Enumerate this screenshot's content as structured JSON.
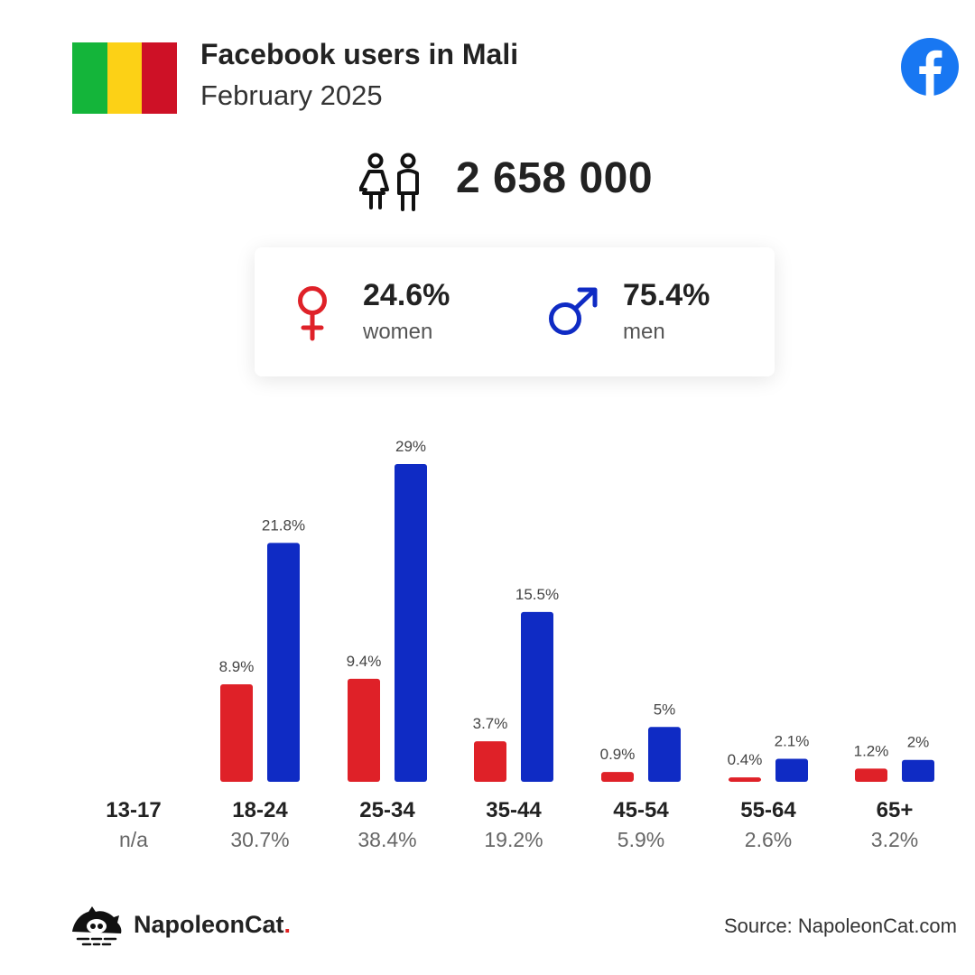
{
  "header": {
    "title": "Facebook users in Mali",
    "subtitle": "February 2025"
  },
  "flag_colors": [
    "#14b53a",
    "#fcd116",
    "#ce1126"
  ],
  "icons": {
    "platform": "facebook-logo-icon",
    "users": "people-icon",
    "female": "female-symbol-icon",
    "male": "male-symbol-icon",
    "brand": "napoleoncat-logo-icon"
  },
  "total_users": "2 658 000",
  "gender": {
    "women_pct": "24.6%",
    "women_label": "women",
    "men_pct": "75.4%",
    "men_label": "men"
  },
  "colors": {
    "women": "#df2128",
    "men": "#0f2bc4",
    "facebook": "#1877f2"
  },
  "chart_data": {
    "type": "bar",
    "categories": [
      "13-17",
      "18-24",
      "25-34",
      "35-44",
      "45-54",
      "55-64",
      "65+"
    ],
    "category_totals": [
      "n/a",
      "30.7%",
      "38.4%",
      "19.2%",
      "5.9%",
      "2.6%",
      "3.2%"
    ],
    "series": [
      {
        "name": "women",
        "values": [
          null,
          8.9,
          9.4,
          3.7,
          0.9,
          0.4,
          1.2
        ],
        "labels": [
          "",
          "8.9%",
          "9.4%",
          "3.7%",
          "0.9%",
          "0.4%",
          "1.2%"
        ]
      },
      {
        "name": "men",
        "values": [
          null,
          21.8,
          29,
          15.5,
          5,
          2.1,
          2
        ],
        "labels": [
          "",
          "21.8%",
          "29%",
          "15.5%",
          "5%",
          "2.1%",
          "2%"
        ]
      }
    ],
    "ylim": [
      0,
      30
    ],
    "grid": false
  },
  "footer": {
    "brand_name": "NapoleonCat",
    "brand_dot": ".",
    "source": "Source: NapoleonCat.com"
  }
}
